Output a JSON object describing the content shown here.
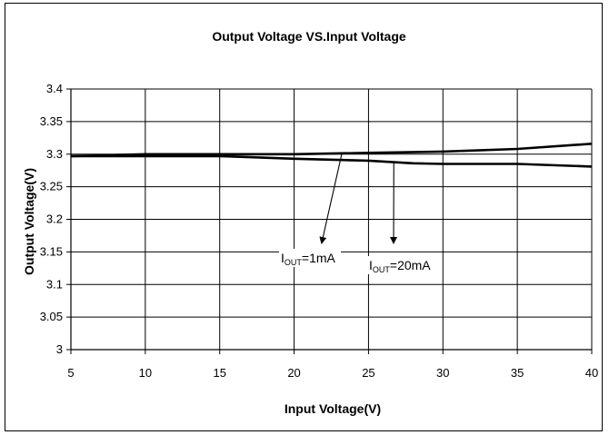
{
  "chart_data": {
    "type": "line",
    "title": "Output Voltage VS.Input Voltage",
    "xlabel": "Input Voltage(V)",
    "ylabel": "Output Voltage(V)",
    "xlim": [
      5,
      40
    ],
    "ylim": [
      3,
      3.4
    ],
    "x_ticks": [
      "5",
      "10",
      "15",
      "20",
      "25",
      "30",
      "35",
      "40"
    ],
    "y_ticks": [
      "3",
      "3.05",
      "3.1",
      "3.15",
      "3.2",
      "3.25",
      "3.3",
      "3.35",
      "3.4"
    ],
    "grid": true,
    "series": [
      {
        "name": "IOUT=1mA",
        "x": [
          5,
          7,
          10,
          15,
          20,
          25,
          30,
          35,
          40
        ],
        "y": [
          3.297,
          3.298,
          3.3,
          3.3,
          3.3,
          3.302,
          3.304,
          3.308,
          3.316
        ]
      },
      {
        "name": "IOUT=20mA",
        "x": [
          5,
          10,
          15,
          20,
          25,
          28,
          30,
          35,
          40
        ],
        "y": [
          3.297,
          3.297,
          3.297,
          3.293,
          3.29,
          3.286,
          3.285,
          3.285,
          3.281
        ]
      }
    ],
    "annotations": [
      {
        "main": "I",
        "sub": "OUT",
        "rest": "=1mA",
        "target_x": 23.2,
        "target_y": 3.3
      },
      {
        "main": "I",
        "sub": "OUT",
        "rest": "=20mA",
        "target_x": 26.7,
        "target_y": 3.288
      }
    ]
  }
}
